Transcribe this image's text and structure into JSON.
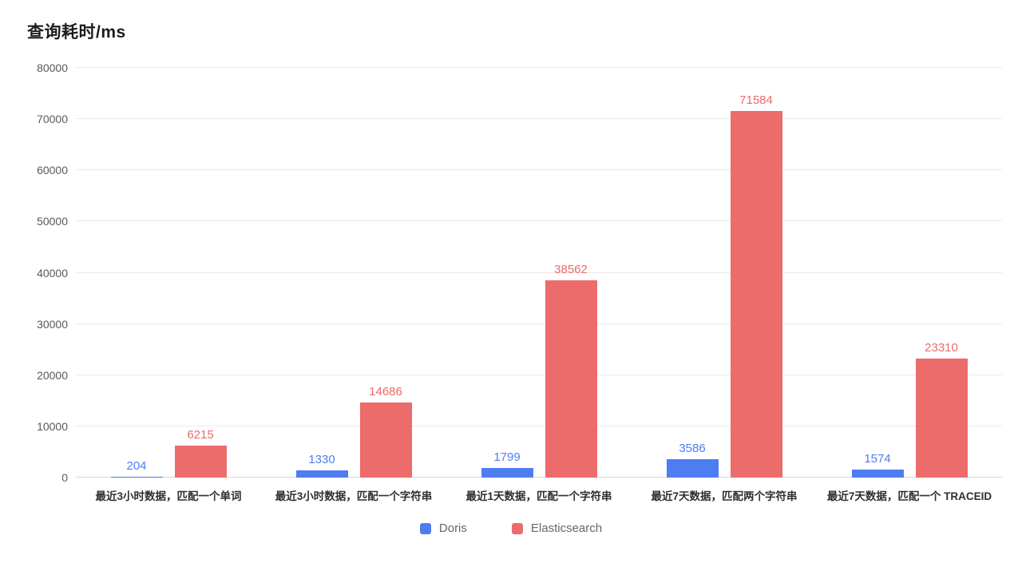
{
  "chart_data": {
    "type": "bar",
    "title": "查询耗时/ms",
    "categories": [
      "最近3小时数据，匹配一个单词",
      "最近3小时数据，匹配一个字符串",
      "最近1天数据，匹配一个字符串",
      "最近7天数据，匹配两个字符串",
      "最近7天数据，匹配一个 TRACEID"
    ],
    "series": [
      {
        "name": "Doris",
        "color": "#4e7cf1",
        "values": [
          204,
          1330,
          1799,
          3586,
          1574
        ]
      },
      {
        "name": "Elasticsearch",
        "color": "#ec6b6b",
        "values": [
          6215,
          14686,
          38562,
          71584,
          23310
        ]
      }
    ],
    "ylim": [
      0,
      80000
    ],
    "ytick_step": 10000,
    "grid": true,
    "legend_position": "bottom",
    "value_labels": true
  }
}
